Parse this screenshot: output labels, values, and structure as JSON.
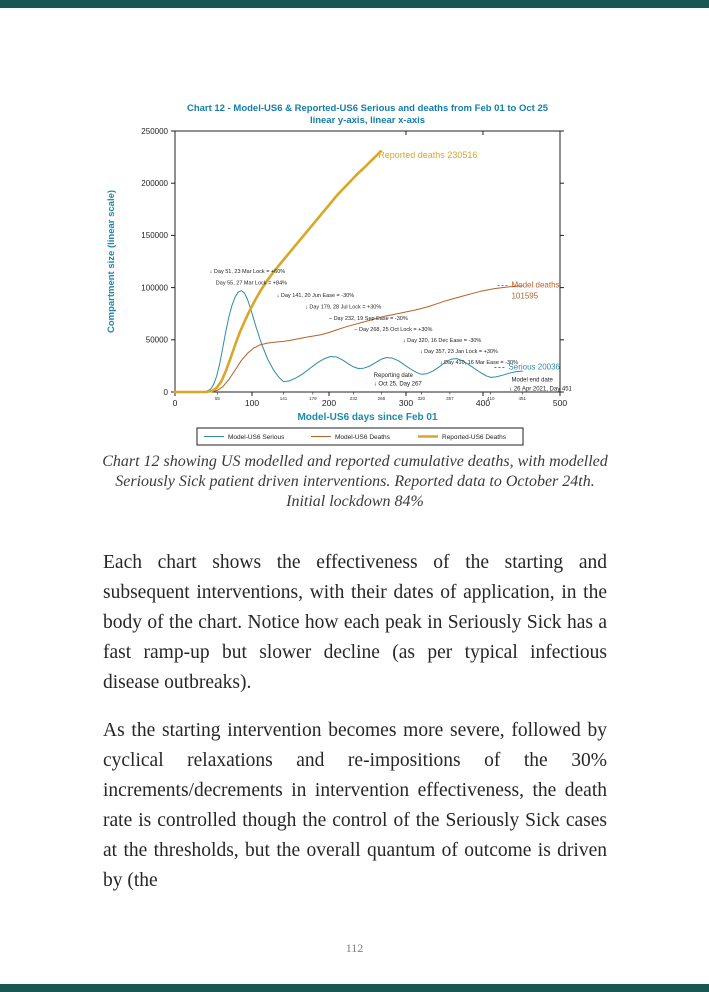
{
  "page": {
    "number": "112"
  },
  "colors": {
    "page_border": "#175754",
    "chart_title": "#157da8",
    "axis_label": "#1c89ae",
    "serious_line": "#2e8ba8",
    "model_deaths_line": "#b85f28",
    "reported_deaths_line": "#d9a628"
  },
  "caption": "Chart 12 showing US modelled and reported cumulative deaths, with modelled Seriously Sick patient driven interventions. Reported data to October 24th. Initial lockdown 84%",
  "paragraphs": [
    "Each chart shows the effectiveness of the starting and subsequent interventions, with their dates of application, in the body of the chart. Notice how each peak in Seriously Sick has a fast ramp-up but slower decline (as per typical infectious disease outbreaks).",
    "As the starting intervention becomes more severe, followed by cyclical relaxations and re-impositions of the 30% increments/decrements in intervention effectiveness, the death rate is controlled though the control of the Seriously Sick cases at the thresholds, but the overall quantum of outcome is driven by (the"
  ],
  "chart_data": {
    "type": "line",
    "title": "Chart 12 - Model-US6 & Reported-US6 Serious and deaths from Feb 01 to Oct 25",
    "subtitle": "linear y-axis, linear x-axis",
    "xlabel": "Model-US6 days since Feb 01",
    "ylabel": "Compartment size (linear scale)",
    "xlim": [
      0,
      500
    ],
    "ylim": [
      0,
      250000
    ],
    "x_major_ticks": [
      0,
      100,
      200,
      300,
      400,
      500
    ],
    "y_major_ticks": [
      0,
      50000,
      100000,
      150000,
      200000,
      250000
    ],
    "x_minor_tick_days": [
      55,
      141,
      179,
      232,
      268,
      320,
      357,
      410,
      451
    ],
    "top_ticks": [
      300,
      400
    ],
    "grid": false,
    "legend_position": "bottom",
    "series": [
      {
        "name": "Model-US6 Serious",
        "color": "#2e8ba8",
        "width": 1,
        "points": [
          [
            0,
            0
          ],
          [
            30,
            0
          ],
          [
            40,
            500
          ],
          [
            46,
            2500
          ],
          [
            50,
            7000
          ],
          [
            54,
            15000
          ],
          [
            58,
            27000
          ],
          [
            62,
            42000
          ],
          [
            66,
            58000
          ],
          [
            70,
            72000
          ],
          [
            74,
            83000
          ],
          [
            78,
            91000
          ],
          [
            82,
            95500
          ],
          [
            86,
            97000
          ],
          [
            90,
            95000
          ],
          [
            94,
            89000
          ],
          [
            99,
            78000
          ],
          [
            105,
            63000
          ],
          [
            112,
            47000
          ],
          [
            120,
            32000
          ],
          [
            128,
            21000
          ],
          [
            135,
            14000
          ],
          [
            141,
            10000
          ],
          [
            148,
            10500
          ],
          [
            156,
            13000
          ],
          [
            165,
            17000
          ],
          [
            175,
            22500
          ],
          [
            185,
            28000
          ],
          [
            194,
            32000
          ],
          [
            202,
            34000
          ],
          [
            210,
            33500
          ],
          [
            218,
            30500
          ],
          [
            226,
            26500
          ],
          [
            232,
            24000
          ],
          [
            238,
            22500
          ],
          [
            245,
            22800
          ],
          [
            252,
            24500
          ],
          [
            260,
            28000
          ],
          [
            268,
            31500
          ],
          [
            275,
            33000
          ],
          [
            282,
            32500
          ],
          [
            290,
            30000
          ],
          [
            298,
            26000
          ],
          [
            306,
            22000
          ],
          [
            313,
            19000
          ],
          [
            320,
            17000
          ],
          [
            327,
            17500
          ],
          [
            335,
            20000
          ],
          [
            344,
            24500
          ],
          [
            352,
            29000
          ],
          [
            359,
            31500
          ],
          [
            366,
            32000
          ],
          [
            373,
            30000
          ],
          [
            381,
            26500
          ],
          [
            389,
            22500
          ],
          [
            397,
            18500
          ],
          [
            404,
            15500
          ],
          [
            410,
            14000
          ],
          [
            417,
            14500
          ],
          [
            425,
            16000
          ],
          [
            434,
            18000
          ],
          [
            443,
            19500
          ],
          [
            451,
            20036
          ]
        ]
      },
      {
        "name": "Model-US6 Deaths",
        "color": "#b85f28",
        "width": 1,
        "points": [
          [
            0,
            0
          ],
          [
            45,
            0
          ],
          [
            55,
            1500
          ],
          [
            62,
            5000
          ],
          [
            70,
            12000
          ],
          [
            78,
            21000
          ],
          [
            86,
            30000
          ],
          [
            94,
            37000
          ],
          [
            102,
            42000
          ],
          [
            110,
            45000
          ],
          [
            120,
            46800
          ],
          [
            130,
            47800
          ],
          [
            141,
            48500
          ],
          [
            150,
            49500
          ],
          [
            160,
            51000
          ],
          [
            170,
            52500
          ],
          [
            179,
            53500
          ],
          [
            190,
            55000
          ],
          [
            200,
            57000
          ],
          [
            210,
            59500
          ],
          [
            220,
            62000
          ],
          [
            232,
            64500
          ],
          [
            242,
            66500
          ],
          [
            252,
            68500
          ],
          [
            262,
            70500
          ],
          [
            272,
            72500
          ],
          [
            282,
            74000
          ],
          [
            292,
            75500
          ],
          [
            302,
            77000
          ],
          [
            312,
            78500
          ],
          [
            320,
            80000
          ],
          [
            330,
            82000
          ],
          [
            340,
            84500
          ],
          [
            350,
            87000
          ],
          [
            357,
            88500
          ],
          [
            367,
            90500
          ],
          [
            377,
            92500
          ],
          [
            387,
            94500
          ],
          [
            397,
            96500
          ],
          [
            407,
            98000
          ],
          [
            415,
            99000
          ],
          [
            425,
            100000
          ],
          [
            435,
            100800
          ],
          [
            443,
            101300
          ],
          [
            451,
            101595
          ]
        ]
      },
      {
        "name": "Reported-US6 Deaths",
        "color": "#d9a628",
        "width": 2.6,
        "points": [
          [
            0,
            0
          ],
          [
            40,
            0
          ],
          [
            48,
            1000
          ],
          [
            54,
            4000
          ],
          [
            60,
            10000
          ],
          [
            66,
            20000
          ],
          [
            72,
            32000
          ],
          [
            78,
            45000
          ],
          [
            84,
            57000
          ],
          [
            90,
            67000
          ],
          [
            97,
            78000
          ],
          [
            104,
            88000
          ],
          [
            112,
            98000
          ],
          [
            120,
            107000
          ],
          [
            129,
            116000
          ],
          [
            138,
            124000
          ],
          [
            147,
            132000
          ],
          [
            156,
            140000
          ],
          [
            165,
            148000
          ],
          [
            174,
            156000
          ],
          [
            183,
            164000
          ],
          [
            192,
            172000
          ],
          [
            201,
            180000
          ],
          [
            210,
            188000
          ],
          [
            219,
            195000
          ],
          [
            228,
            202000
          ],
          [
            237,
            209000
          ],
          [
            246,
            215000
          ],
          [
            254,
            221000
          ],
          [
            261,
            226000
          ],
          [
            267,
            230516
          ]
        ]
      }
    ],
    "annotations": [
      {
        "text": "↓ Day 51, 23 Mar Lock = +60%",
        "day": 45,
        "value": 114000,
        "size": 5.5,
        "color": "#222222"
      },
      {
        "text": "Day 55, 27 Mar Lock = +84%",
        "day": 53,
        "value": 103000,
        "size": 5.5,
        "color": "#222222"
      },
      {
        "text": "↓ Day 141, 20 Jun Ease = -30%",
        "day": 132,
        "value": 91000,
        "size": 5.5,
        "color": "#222222"
      },
      {
        "text": "↓ Day 179, 28 Jul Lock = +30%",
        "day": 169,
        "value": 80000,
        "size": 5.5,
        "color": "#222222"
      },
      {
        "text": "– Day 232, 19 Sep Ease = -30%",
        "day": 200,
        "value": 69000,
        "size": 5.5,
        "color": "#222222"
      },
      {
        "text": "– Day 268, 25 Oct Lock = +30%",
        "day": 233,
        "value": 58500,
        "size": 5.5,
        "color": "#222222"
      },
      {
        "text": "↓ Day 320, 16 Dec Ease = -30%",
        "day": 296,
        "value": 48000,
        "size": 5.5,
        "color": "#222222"
      },
      {
        "text": "↓ Day 357, 23 Jan Lock = +30%",
        "day": 318,
        "value": 37500,
        "size": 5.5,
        "color": "#222222"
      },
      {
        "text": "↓ Day 410, 16 Mar Ease = -30%",
        "day": 344,
        "value": 27000,
        "size": 5.5,
        "color": "#222222"
      },
      {
        "text": "Reported deaths 230516",
        "day": 264,
        "value": 224000,
        "size": 9,
        "color": "#d9a628"
      },
      {
        "text": "Model deaths",
        "day": 437,
        "value": 100000,
        "size": 8,
        "color": "#b85f28",
        "leader": true
      },
      {
        "text": "101595",
        "day": 437,
        "value": 89500,
        "size": 8,
        "color": "#b85f28"
      },
      {
        "text": "Serious 20036",
        "day": 433,
        "value": 21500,
        "size": 8,
        "color": "#2e8ba8",
        "leader": true
      },
      {
        "text": "Model end date",
        "day": 437,
        "value": 10000,
        "size": 6,
        "color": "#222222"
      },
      {
        "text": "↓ 26 Apr 2021, Day 451",
        "day": 434,
        "value": 1500,
        "size": 6,
        "color": "#222222"
      },
      {
        "text": "Reporting date",
        "day": 258,
        "value": 14500,
        "size": 6,
        "color": "#222222"
      },
      {
        "text": "↓ Oct 25, Day 267",
        "day": 258,
        "value": 6000,
        "size": 6,
        "color": "#222222"
      }
    ],
    "legend": [
      "Model-US6 Serious",
      "Model-US6 Deaths",
      "Reported-US6 Deaths"
    ]
  }
}
